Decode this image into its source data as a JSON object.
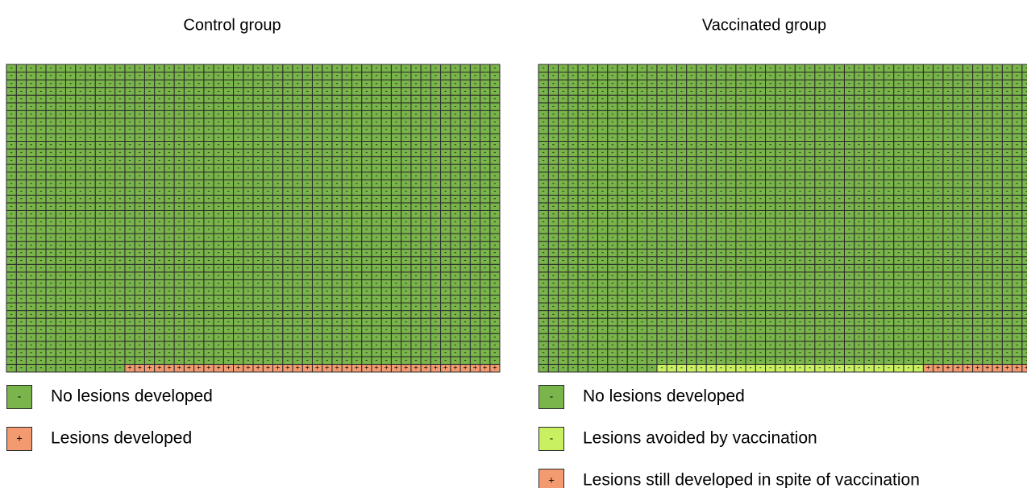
{
  "chart_data": [
    {
      "type": "waffle",
      "title": "Control group",
      "rows": 40,
      "columns": 50,
      "series": [
        {
          "name": "No lesions developed",
          "symbol": "-",
          "color": "#79b54a",
          "values": [
            1962
          ]
        },
        {
          "name": "Lesions developed",
          "symbol": "+",
          "color": "#f39a70",
          "values": [
            38
          ]
        }
      ]
    },
    {
      "type": "waffle",
      "title": "Vaccinated group",
      "rows": 40,
      "columns": 50,
      "series": [
        {
          "name": "No lesions developed",
          "symbol": "-",
          "color": "#79b54a",
          "values": [
            1962
          ]
        },
        {
          "name": "Lesions avoided by vaccination",
          "symbol": "-",
          "color": "#c8f060",
          "values": [
            27
          ]
        },
        {
          "name": "Lesions still developed in spite of vaccination",
          "symbol": "+",
          "color": "#f39a70",
          "values": [
            11
          ]
        }
      ]
    }
  ]
}
